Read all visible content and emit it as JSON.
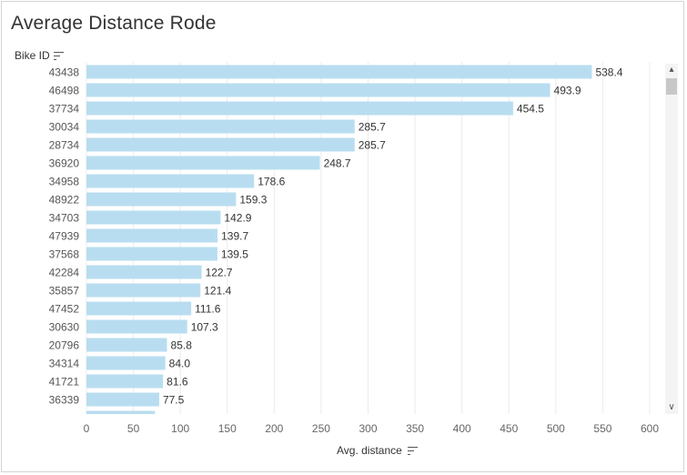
{
  "chart_data": {
    "type": "bar",
    "orientation": "horizontal",
    "title": "Average Distance Rode",
    "ylabel": "Bike ID",
    "xlabel": "Avg. distance",
    "xlim": [
      0,
      600
    ],
    "xticks": [
      0,
      50,
      100,
      150,
      200,
      250,
      300,
      350,
      400,
      450,
      500,
      550,
      600
    ],
    "grid": true,
    "bar_color": "#b9ddf0",
    "categories": [
      "43438",
      "46498",
      "37734",
      "30034",
      "28734",
      "36920",
      "34958",
      "48922",
      "34703",
      "47939",
      "37568",
      "42284",
      "35857",
      "47452",
      "30630",
      "20796",
      "34314",
      "41721",
      "36339"
    ],
    "values": [
      538.4,
      493.9,
      454.5,
      285.7,
      285.7,
      248.7,
      178.6,
      159.3,
      142.9,
      139.7,
      139.5,
      122.7,
      121.4,
      111.6,
      107.3,
      85.8,
      84.0,
      81.6,
      77.5
    ],
    "value_labels": [
      "538.4",
      "493.9",
      "454.5",
      "285.7",
      "285.7",
      "248.7",
      "178.6",
      "159.3",
      "142.9",
      "139.7",
      "139.5",
      "122.7",
      "121.4",
      "111.6",
      "107.3",
      "85.8",
      "84.0",
      "81.6",
      "77.5"
    ],
    "partial_next_value": 73
  },
  "controls": {
    "scroll_up_icon": "chevron-up-icon",
    "scroll_down_icon": "chevron-down-icon",
    "sort_icon": "sort-descending-icon"
  }
}
